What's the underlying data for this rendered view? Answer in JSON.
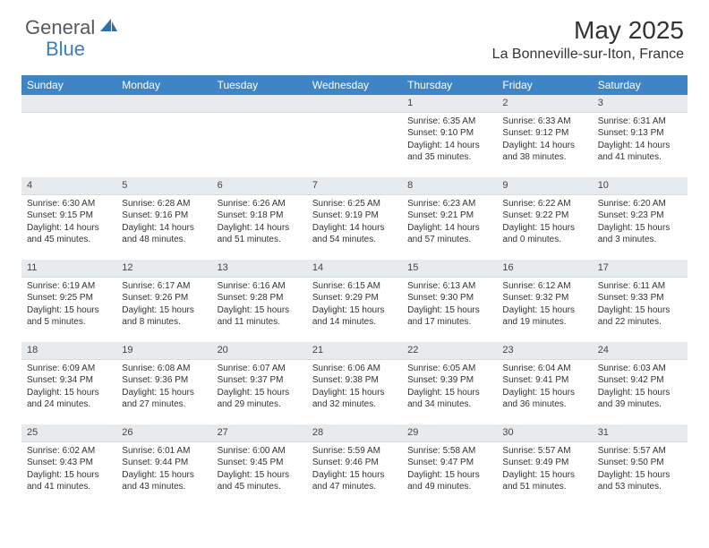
{
  "brand": {
    "part1": "General",
    "part2": "Blue"
  },
  "title": "May 2025",
  "location": "La Bonneville-sur-Iton, France",
  "colors": {
    "header_bg": "#3f85c6",
    "daybar_bg": "#e8ebed",
    "text": "#333333",
    "brand_gray": "#555a5f",
    "brand_blue": "#3a7fc4"
  },
  "weekdays": [
    "Sunday",
    "Monday",
    "Tuesday",
    "Wednesday",
    "Thursday",
    "Friday",
    "Saturday"
  ],
  "weeks": [
    [
      null,
      null,
      null,
      null,
      {
        "n": "1",
        "sunrise": "6:35 AM",
        "sunset": "9:10 PM",
        "dl": "14 hours and 35 minutes."
      },
      {
        "n": "2",
        "sunrise": "6:33 AM",
        "sunset": "9:12 PM",
        "dl": "14 hours and 38 minutes."
      },
      {
        "n": "3",
        "sunrise": "6:31 AM",
        "sunset": "9:13 PM",
        "dl": "14 hours and 41 minutes."
      }
    ],
    [
      {
        "n": "4",
        "sunrise": "6:30 AM",
        "sunset": "9:15 PM",
        "dl": "14 hours and 45 minutes."
      },
      {
        "n": "5",
        "sunrise": "6:28 AM",
        "sunset": "9:16 PM",
        "dl": "14 hours and 48 minutes."
      },
      {
        "n": "6",
        "sunrise": "6:26 AM",
        "sunset": "9:18 PM",
        "dl": "14 hours and 51 minutes."
      },
      {
        "n": "7",
        "sunrise": "6:25 AM",
        "sunset": "9:19 PM",
        "dl": "14 hours and 54 minutes."
      },
      {
        "n": "8",
        "sunrise": "6:23 AM",
        "sunset": "9:21 PM",
        "dl": "14 hours and 57 minutes."
      },
      {
        "n": "9",
        "sunrise": "6:22 AM",
        "sunset": "9:22 PM",
        "dl": "15 hours and 0 minutes."
      },
      {
        "n": "10",
        "sunrise": "6:20 AM",
        "sunset": "9:23 PM",
        "dl": "15 hours and 3 minutes."
      }
    ],
    [
      {
        "n": "11",
        "sunrise": "6:19 AM",
        "sunset": "9:25 PM",
        "dl": "15 hours and 5 minutes."
      },
      {
        "n": "12",
        "sunrise": "6:17 AM",
        "sunset": "9:26 PM",
        "dl": "15 hours and 8 minutes."
      },
      {
        "n": "13",
        "sunrise": "6:16 AM",
        "sunset": "9:28 PM",
        "dl": "15 hours and 11 minutes."
      },
      {
        "n": "14",
        "sunrise": "6:15 AM",
        "sunset": "9:29 PM",
        "dl": "15 hours and 14 minutes."
      },
      {
        "n": "15",
        "sunrise": "6:13 AM",
        "sunset": "9:30 PM",
        "dl": "15 hours and 17 minutes."
      },
      {
        "n": "16",
        "sunrise": "6:12 AM",
        "sunset": "9:32 PM",
        "dl": "15 hours and 19 minutes."
      },
      {
        "n": "17",
        "sunrise": "6:11 AM",
        "sunset": "9:33 PM",
        "dl": "15 hours and 22 minutes."
      }
    ],
    [
      {
        "n": "18",
        "sunrise": "6:09 AM",
        "sunset": "9:34 PM",
        "dl": "15 hours and 24 minutes."
      },
      {
        "n": "19",
        "sunrise": "6:08 AM",
        "sunset": "9:36 PM",
        "dl": "15 hours and 27 minutes."
      },
      {
        "n": "20",
        "sunrise": "6:07 AM",
        "sunset": "9:37 PM",
        "dl": "15 hours and 29 minutes."
      },
      {
        "n": "21",
        "sunrise": "6:06 AM",
        "sunset": "9:38 PM",
        "dl": "15 hours and 32 minutes."
      },
      {
        "n": "22",
        "sunrise": "6:05 AM",
        "sunset": "9:39 PM",
        "dl": "15 hours and 34 minutes."
      },
      {
        "n": "23",
        "sunrise": "6:04 AM",
        "sunset": "9:41 PM",
        "dl": "15 hours and 36 minutes."
      },
      {
        "n": "24",
        "sunrise": "6:03 AM",
        "sunset": "9:42 PM",
        "dl": "15 hours and 39 minutes."
      }
    ],
    [
      {
        "n": "25",
        "sunrise": "6:02 AM",
        "sunset": "9:43 PM",
        "dl": "15 hours and 41 minutes."
      },
      {
        "n": "26",
        "sunrise": "6:01 AM",
        "sunset": "9:44 PM",
        "dl": "15 hours and 43 minutes."
      },
      {
        "n": "27",
        "sunrise": "6:00 AM",
        "sunset": "9:45 PM",
        "dl": "15 hours and 45 minutes."
      },
      {
        "n": "28",
        "sunrise": "5:59 AM",
        "sunset": "9:46 PM",
        "dl": "15 hours and 47 minutes."
      },
      {
        "n": "29",
        "sunrise": "5:58 AM",
        "sunset": "9:47 PM",
        "dl": "15 hours and 49 minutes."
      },
      {
        "n": "30",
        "sunrise": "5:57 AM",
        "sunset": "9:49 PM",
        "dl": "15 hours and 51 minutes."
      },
      {
        "n": "31",
        "sunrise": "5:57 AM",
        "sunset": "9:50 PM",
        "dl": "15 hours and 53 minutes."
      }
    ]
  ],
  "labels": {
    "sunrise": "Sunrise:",
    "sunset": "Sunset:",
    "daylight": "Daylight:"
  }
}
